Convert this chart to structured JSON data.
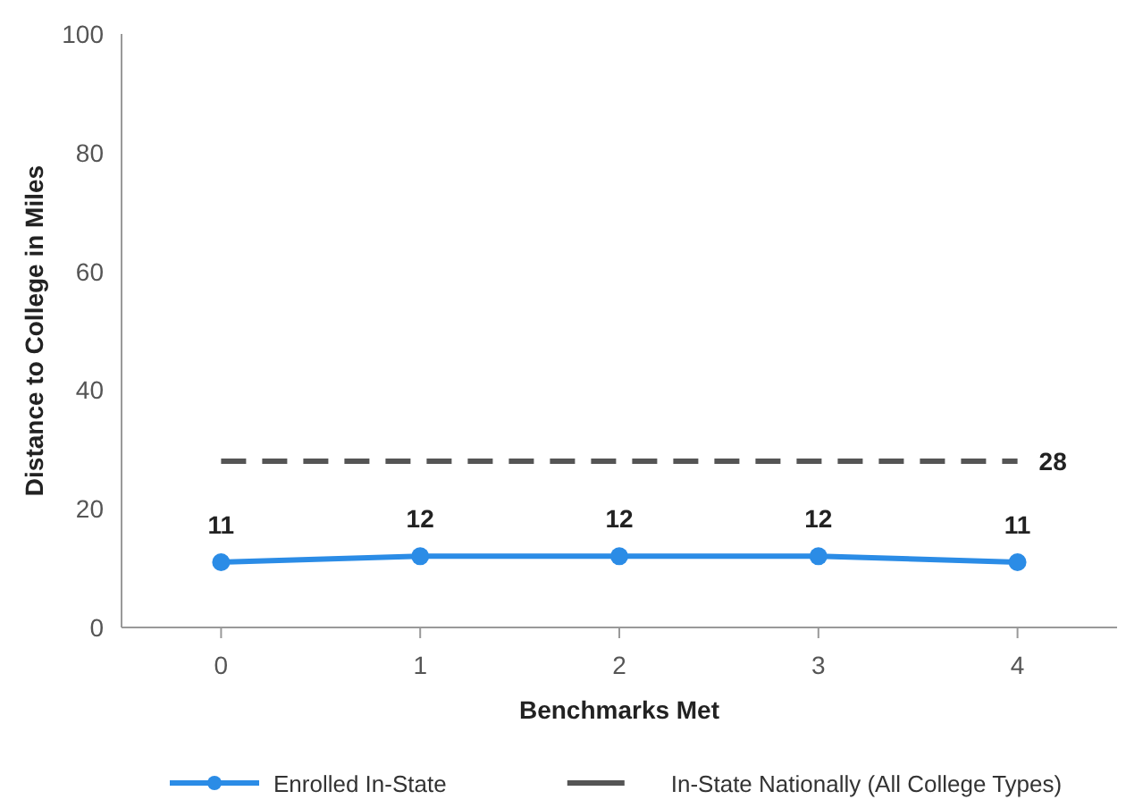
{
  "chart_data": {
    "type": "line",
    "xlabel": "Benchmarks Met",
    "ylabel": "Distance to College in Miles",
    "categories": [
      "0",
      "1",
      "2",
      "3",
      "4"
    ],
    "ylim": [
      0,
      100
    ],
    "yticks": [
      0,
      20,
      40,
      60,
      80,
      100
    ],
    "grid": false,
    "legend": "bottom",
    "series": [
      {
        "name": "Enrolled In-State",
        "color": "#2b8ce6",
        "values": [
          11,
          12,
          12,
          12,
          11
        ],
        "marker": "circle",
        "line_style": "solid",
        "value_labels": [
          "11",
          "12",
          "12",
          "12",
          "11"
        ]
      },
      {
        "name": "In-State Nationally (All College Types)",
        "color": "#555555",
        "values": [
          28,
          28,
          28,
          28,
          28
        ],
        "marker": "none",
        "line_style": "dashed",
        "value_labels": [
          null,
          null,
          null,
          null,
          "28"
        ]
      }
    ]
  }
}
